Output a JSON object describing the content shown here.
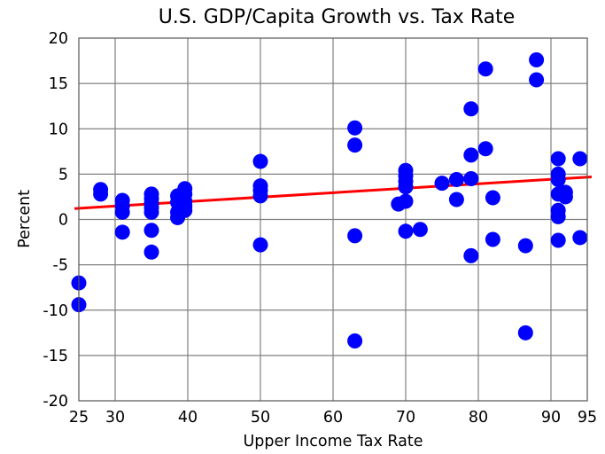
{
  "chart_data": {
    "type": "scatter",
    "title": "U.S. GDP/Capita Growth vs. Tax Rate",
    "xlabel": "Upper Income Tax Rate",
    "ylabel": "Percent",
    "xlim": [
      25,
      95
    ],
    "ylim": [
      -20,
      20
    ],
    "xticks": [
      25,
      30,
      40,
      50,
      60,
      70,
      80,
      90,
      95
    ],
    "yticks": [
      -20,
      -15,
      -10,
      -5,
      0,
      5,
      10,
      15,
      20
    ],
    "grid": true,
    "legend": "none",
    "colors": {
      "points": "#0000ff",
      "trend": "#ff0000",
      "grid": "#808080",
      "frame": "#555555"
    },
    "series": [
      {
        "name": "GDP/Capita Growth",
        "marker": "circle",
        "points": [
          [
            25,
            -7.0
          ],
          [
            25,
            -9.4
          ],
          [
            28,
            3.3
          ],
          [
            28,
            2.8
          ],
          [
            31,
            2.1
          ],
          [
            31,
            1.5
          ],
          [
            31,
            0.8
          ],
          [
            31,
            -1.4
          ],
          [
            35,
            2.8
          ],
          [
            35,
            2.3
          ],
          [
            35,
            1.8
          ],
          [
            35,
            1.3
          ],
          [
            35,
            0.8
          ],
          [
            35,
            -1.2
          ],
          [
            35,
            -3.6
          ],
          [
            38.6,
            2.6
          ],
          [
            38.6,
            1.9
          ],
          [
            38.6,
            0.8
          ],
          [
            38.6,
            0.2
          ],
          [
            39.6,
            3.4
          ],
          [
            39.6,
            2.8
          ],
          [
            39.6,
            2.0
          ],
          [
            39.6,
            1.5
          ],
          [
            39.6,
            1.0
          ],
          [
            50,
            6.4
          ],
          [
            50,
            3.7
          ],
          [
            50,
            3.2
          ],
          [
            50,
            2.6
          ],
          [
            50,
            -2.8
          ],
          [
            63,
            10.1
          ],
          [
            63,
            8.2
          ],
          [
            63,
            -1.8
          ],
          [
            63,
            -13.4
          ],
          [
            70,
            5.4
          ],
          [
            70,
            4.8
          ],
          [
            70,
            4.2
          ],
          [
            70,
            3.6
          ],
          [
            70,
            2.0
          ],
          [
            69,
            1.7
          ],
          [
            70,
            -1.3
          ],
          [
            72,
            -1.1
          ],
          [
            75,
            4.0
          ],
          [
            77,
            4.4
          ],
          [
            77,
            2.2
          ],
          [
            79,
            12.2
          ],
          [
            79,
            7.1
          ],
          [
            79,
            4.5
          ],
          [
            79,
            -4.0
          ],
          [
            81,
            16.6
          ],
          [
            81,
            7.8
          ],
          [
            82,
            2.4
          ],
          [
            82,
            -2.2
          ],
          [
            86.5,
            -2.9
          ],
          [
            86.5,
            -12.5
          ],
          [
            88,
            17.6
          ],
          [
            88,
            15.4
          ],
          [
            91,
            6.7
          ],
          [
            91,
            5.0
          ],
          [
            91,
            4.4
          ],
          [
            91,
            2.8
          ],
          [
            91,
            1.0
          ],
          [
            91,
            0.3
          ],
          [
            91,
            -2.3
          ],
          [
            92,
            3.0
          ],
          [
            92,
            2.5
          ],
          [
            94,
            6.7
          ],
          [
            94,
            -2.0
          ]
        ]
      }
    ],
    "trendline": {
      "name": "Linear fit",
      "from": [
        24.4,
        1.2
      ],
      "to": [
        95.6,
        4.7
      ]
    }
  }
}
